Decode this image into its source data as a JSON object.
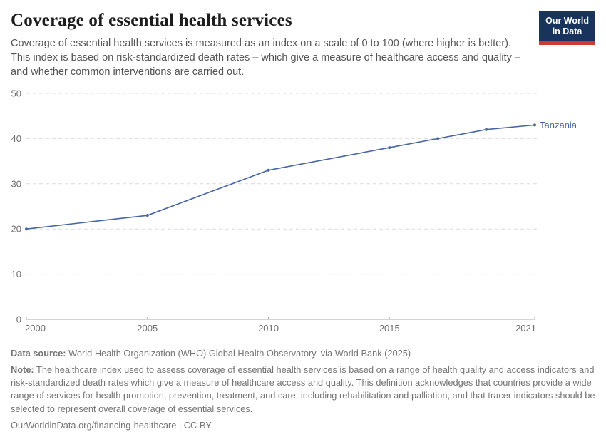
{
  "header": {
    "title": "Coverage of essential health services",
    "subtitle": "Coverage of essential health services is measured as an index on a scale of 0 to 100 (where higher is better). This index is based on risk-standardized death rates – which give a measure of healthcare access and quality – and whether common interventions are carried out.",
    "logo": {
      "line1": "Our World",
      "line2": "in Data",
      "bg_color": "#18345d",
      "bar_color": "#ce3a32"
    }
  },
  "chart_data": {
    "type": "line",
    "title": "Coverage of essential health services",
    "xlabel": "",
    "ylabel": "",
    "xlim": [
      2000,
      2021
    ],
    "ylim": [
      0,
      50
    ],
    "x_ticks": [
      2000,
      2005,
      2010,
      2015,
      2021
    ],
    "y_ticks": [
      0,
      10,
      20,
      30,
      40,
      50
    ],
    "grid": "horizontal-dashed",
    "legend_position": "end-of-line",
    "series": [
      {
        "name": "Tanzania",
        "color": "#4665a2",
        "points": [
          [
            2000,
            20
          ],
          [
            2005,
            23
          ],
          [
            2010,
            33
          ],
          [
            2015,
            38
          ],
          [
            2017,
            40
          ],
          [
            2019,
            42
          ],
          [
            2021,
            43
          ]
        ]
      }
    ]
  },
  "footer": {
    "datasource_label": "Data source:",
    "datasource_text": " World Health Organization (WHO) Global Health Observatory, via World Bank (2025)",
    "note_label": "Note:",
    "note_text": " The healthcare index used to assess coverage of essential health services is based on a range of health quality and access indicators and risk-standardized death rates which give a measure of healthcare access and quality. This definition acknowledges that countries provide a wide range of services for health promotion, prevention, treatment, and care, including rehabilitation and palliation, and that tracer indicators should be selected to represent overall coverage of essential services.",
    "license": "OurWorldinData.org/financing-healthcare | CC BY"
  }
}
